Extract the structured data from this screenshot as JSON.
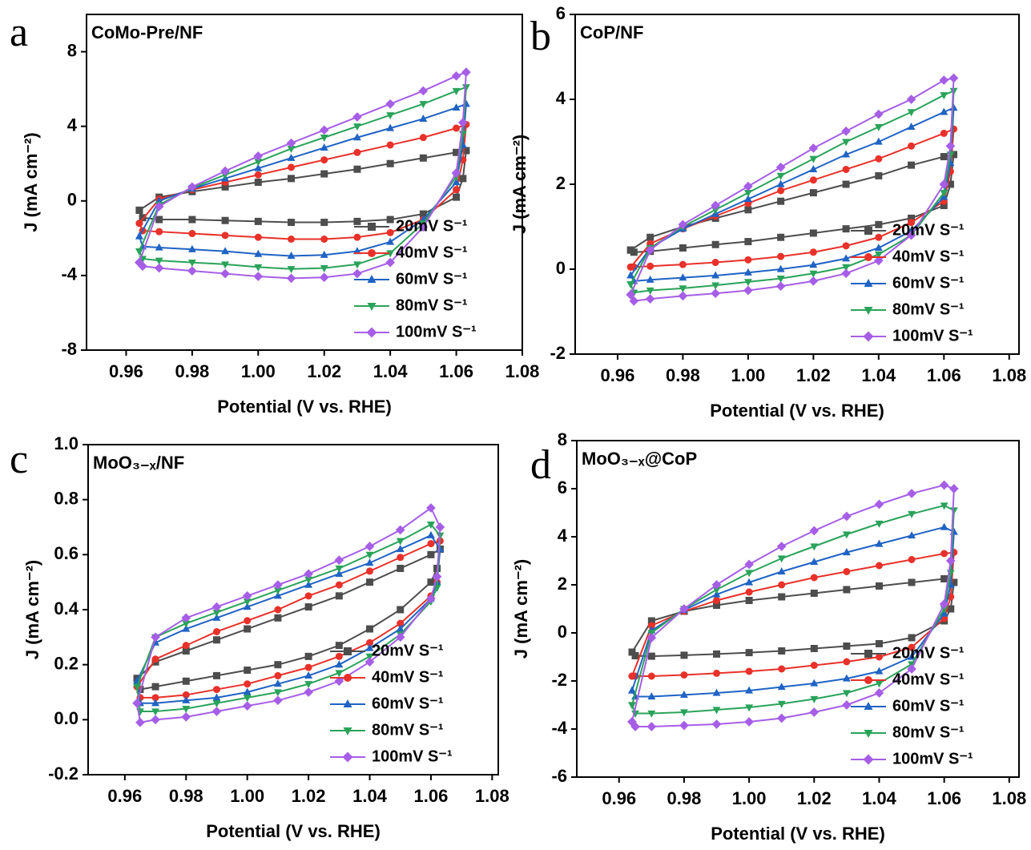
{
  "chart_data": [
    {
      "type": "line",
      "panel_label": "a",
      "title": "CoMo-Pre/NF",
      "xlabel": "Potential (V vs. RHE)",
      "ylabel": "J (mA cm⁻²)",
      "xlim": [
        0.948,
        1.08
      ],
      "ylim": [
        -8,
        10
      ],
      "xticks": [
        0.96,
        0.98,
        {
          "value": 1,
          "label": "1.00"
        },
        1.02,
        1.04,
        1.06,
        1.08
      ],
      "yticks": [
        -8,
        -4,
        0,
        4,
        8
      ],
      "legend": "lower right",
      "x": [
        0.964,
        0.97,
        0.98,
        0.99,
        1.0,
        1.01,
        1.02,
        1.03,
        1.04,
        1.05,
        1.06,
        1.063,
        1.062,
        1.06,
        1.05,
        1.04,
        1.03,
        1.02,
        1.01,
        1.0,
        0.99,
        0.98,
        0.97,
        0.965,
        0.964
      ],
      "series": [
        {
          "name": "20mV S⁻¹",
          "color": "#4d4d4d",
          "marker": "square",
          "values": [
            -0.5,
            0.2,
            0.5,
            0.75,
            1.0,
            1.2,
            1.45,
            1.7,
            2.0,
            2.3,
            2.6,
            2.7,
            1.2,
            0.2,
            -0.7,
            -1.0,
            -1.1,
            -1.15,
            -1.15,
            -1.1,
            -1.05,
            -1.0,
            -1.0,
            -0.9,
            -0.5
          ]
        },
        {
          "name": "40mV S⁻¹",
          "color": "#e8312a",
          "marker": "circle",
          "values": [
            -1.2,
            0.1,
            0.6,
            1.0,
            1.4,
            1.8,
            2.2,
            2.6,
            3.0,
            3.4,
            3.9,
            4.1,
            2.2,
            0.6,
            -1.0,
            -1.7,
            -1.95,
            -2.05,
            -2.05,
            -1.95,
            -1.85,
            -1.75,
            -1.65,
            -1.6,
            -1.2
          ]
        },
        {
          "name": "60mV S⁻¹",
          "color": "#1f63c4",
          "marker": "triangle-up",
          "values": [
            -1.9,
            0.0,
            0.65,
            1.2,
            1.75,
            2.3,
            2.85,
            3.4,
            3.9,
            4.4,
            5.0,
            5.2,
            3.0,
            1.0,
            -1.0,
            -2.2,
            -2.7,
            -2.9,
            -2.95,
            -2.85,
            -2.7,
            -2.6,
            -2.5,
            -2.45,
            -1.9
          ]
        },
        {
          "name": "80mV S⁻¹",
          "color": "#2aa35a",
          "marker": "triangle-down",
          "values": [
            -2.7,
            -0.2,
            0.7,
            1.4,
            2.1,
            2.8,
            3.4,
            4.0,
            4.6,
            5.2,
            5.9,
            6.1,
            3.6,
            1.3,
            -1.2,
            -2.8,
            -3.4,
            -3.6,
            -3.65,
            -3.55,
            -3.4,
            -3.3,
            -3.2,
            -3.1,
            -2.7
          ]
        },
        {
          "name": "100mV S⁻¹",
          "color": "#a65ee6",
          "marker": "diamond",
          "values": [
            -3.3,
            -0.3,
            0.75,
            1.6,
            2.4,
            3.1,
            3.8,
            4.5,
            5.2,
            5.9,
            6.7,
            6.9,
            4.2,
            1.5,
            -1.4,
            -3.3,
            -3.9,
            -4.1,
            -4.15,
            -4.05,
            -3.9,
            -3.75,
            -3.6,
            -3.5,
            -3.3
          ]
        }
      ]
    },
    {
      "type": "line",
      "panel_label": "b",
      "title": "CoP/NF",
      "xlabel": "Potential (V vs. RHE)",
      "ylabel": "J (mA cm⁻²)",
      "xlim": [
        0.947,
        1.083
      ],
      "ylim": [
        -2,
        6
      ],
      "xticks": [
        0.96,
        0.98,
        {
          "value": 1,
          "label": "1.00"
        },
        1.02,
        1.04,
        1.06,
        1.08
      ],
      "yticks": [
        -2,
        0,
        2,
        4,
        6
      ],
      "legend": "lower right",
      "x": [
        0.964,
        0.97,
        0.98,
        0.99,
        1.0,
        1.01,
        1.02,
        1.03,
        1.04,
        1.05,
        1.06,
        1.063,
        1.062,
        1.06,
        1.05,
        1.04,
        1.03,
        1.02,
        1.01,
        1.0,
        0.99,
        0.98,
        0.97,
        0.965,
        0.964
      ],
      "series": [
        {
          "name": "20mV S⁻¹",
          "color": "#4d4d4d",
          "marker": "square",
          "values": [
            0.45,
            0.75,
            1.0,
            1.2,
            1.4,
            1.6,
            1.8,
            2.0,
            2.2,
            2.45,
            2.65,
            2.7,
            2.0,
            1.5,
            1.2,
            1.05,
            0.95,
            0.85,
            0.75,
            0.65,
            0.58,
            0.5,
            0.42,
            0.4,
            0.45
          ]
        },
        {
          "name": "40mV S⁻¹",
          "color": "#e8312a",
          "marker": "circle",
          "values": [
            0.05,
            0.6,
            0.95,
            1.25,
            1.55,
            1.85,
            2.1,
            2.35,
            2.6,
            2.9,
            3.2,
            3.3,
            2.3,
            1.6,
            1.1,
            0.75,
            0.55,
            0.4,
            0.3,
            0.22,
            0.16,
            0.11,
            0.07,
            0.05,
            0.05
          ]
        },
        {
          "name": "60mV S⁻¹",
          "color": "#1f63c4",
          "marker": "triangle-up",
          "values": [
            -0.15,
            0.5,
            0.95,
            1.3,
            1.65,
            2.0,
            2.35,
            2.7,
            3.0,
            3.35,
            3.7,
            3.8,
            2.5,
            1.7,
            0.9,
            0.5,
            0.25,
            0.1,
            0.0,
            -0.08,
            -0.15,
            -0.2,
            -0.25,
            -0.28,
            -0.15
          ]
        },
        {
          "name": "80mV S⁻¹",
          "color": "#2aa35a",
          "marker": "triangle-down",
          "values": [
            -0.35,
            0.5,
            1.0,
            1.4,
            1.8,
            2.2,
            2.6,
            3.0,
            3.35,
            3.7,
            4.1,
            4.2,
            2.7,
            1.8,
            0.8,
            0.35,
            0.05,
            -0.1,
            -0.22,
            -0.3,
            -0.38,
            -0.45,
            -0.5,
            -0.55,
            -0.35
          ]
        },
        {
          "name": "100mV S⁻¹",
          "color": "#a65ee6",
          "marker": "diamond",
          "values": [
            -0.6,
            0.45,
            1.05,
            1.5,
            1.95,
            2.4,
            2.85,
            3.25,
            3.65,
            4.0,
            4.45,
            4.5,
            2.9,
            2.0,
            0.8,
            0.2,
            -0.1,
            -0.28,
            -0.4,
            -0.5,
            -0.57,
            -0.63,
            -0.7,
            -0.75,
            -0.6
          ]
        }
      ]
    },
    {
      "type": "line",
      "panel_label": "c",
      "title": "MoO₃₋ₓ/NF",
      "xlabel": "Potential (V vs. RHE)",
      "ylabel": "J (mA cm⁻²)",
      "xlim": [
        0.948,
        1.082
      ],
      "ylim": [
        -0.2,
        1.0
      ],
      "xticks": [
        0.96,
        0.98,
        {
          "value": 1,
          "label": "1.00"
        },
        1.02,
        1.04,
        1.06,
        1.08
      ],
      "yticks": [
        -0.2,
        {
          "value": 0,
          "label": "0.0"
        },
        0.2,
        0.4,
        0.6,
        0.8,
        {
          "value": 1,
          "label": "1.0"
        }
      ],
      "legend": "lower right",
      "x": [
        0.964,
        0.97,
        0.98,
        0.99,
        1.0,
        1.01,
        1.02,
        1.03,
        1.04,
        1.05,
        1.06,
        1.063,
        1.062,
        1.06,
        1.05,
        1.04,
        1.03,
        1.02,
        1.01,
        1.0,
        0.99,
        0.98,
        0.97,
        0.965,
        0.964
      ],
      "series": [
        {
          "name": "20mV S⁻¹",
          "color": "#4d4d4d",
          "marker": "square",
          "values": [
            0.15,
            0.21,
            0.25,
            0.29,
            0.33,
            0.37,
            0.41,
            0.45,
            0.5,
            0.55,
            0.6,
            0.62,
            0.55,
            0.5,
            0.4,
            0.33,
            0.27,
            0.23,
            0.2,
            0.18,
            0.16,
            0.14,
            0.12,
            0.11,
            0.15
          ]
        },
        {
          "name": "40mV S⁻¹",
          "color": "#e8312a",
          "marker": "circle",
          "values": [
            0.12,
            0.22,
            0.27,
            0.32,
            0.36,
            0.4,
            0.45,
            0.49,
            0.54,
            0.59,
            0.64,
            0.65,
            0.5,
            0.45,
            0.35,
            0.28,
            0.23,
            0.19,
            0.16,
            0.13,
            0.11,
            0.09,
            0.08,
            0.08,
            0.12
          ]
        },
        {
          "name": "60mV S⁻¹",
          "color": "#1f63c4",
          "marker": "triangle-up",
          "values": [
            0.14,
            0.28,
            0.33,
            0.37,
            0.41,
            0.45,
            0.49,
            0.53,
            0.57,
            0.62,
            0.67,
            0.62,
            0.5,
            0.44,
            0.33,
            0.26,
            0.2,
            0.16,
            0.13,
            0.1,
            0.08,
            0.07,
            0.06,
            0.06,
            0.14
          ]
        },
        {
          "name": "80mV S⁻¹",
          "color": "#2aa35a",
          "marker": "triangle-down",
          "values": [
            0.12,
            0.3,
            0.35,
            0.39,
            0.43,
            0.47,
            0.51,
            0.55,
            0.6,
            0.65,
            0.71,
            0.67,
            0.48,
            0.43,
            0.31,
            0.23,
            0.17,
            0.13,
            0.1,
            0.08,
            0.06,
            0.04,
            0.03,
            0.03,
            0.12
          ]
        },
        {
          "name": "100mV S⁻¹",
          "color": "#a65ee6",
          "marker": "diamond",
          "values": [
            0.06,
            0.3,
            0.37,
            0.41,
            0.45,
            0.49,
            0.53,
            0.58,
            0.63,
            0.69,
            0.77,
            0.7,
            0.52,
            0.44,
            0.3,
            0.21,
            0.14,
            0.1,
            0.07,
            0.05,
            0.03,
            0.01,
            0.0,
            -0.01,
            0.06
          ]
        }
      ]
    },
    {
      "type": "line",
      "panel_label": "d",
      "title": "MoO₃₋ₓ@CoP",
      "xlabel": "Potential (V vs. RHE)",
      "ylabel": "J (mA cm⁻²)",
      "xlim": [
        0.947,
        1.083
      ],
      "ylim": [
        -6,
        8
      ],
      "xticks": [
        0.96,
        0.98,
        {
          "value": 1,
          "label": "1.00"
        },
        1.02,
        1.04,
        1.06,
        1.08
      ],
      "yticks": [
        -6,
        -4,
        -2,
        0,
        2,
        4,
        6,
        8
      ],
      "legend": "lower right",
      "x": [
        0.964,
        0.97,
        0.98,
        0.99,
        1.0,
        1.01,
        1.02,
        1.03,
        1.04,
        1.05,
        1.06,
        1.063,
        1.062,
        1.06,
        1.05,
        1.04,
        1.03,
        1.02,
        1.01,
        1.0,
        0.99,
        0.98,
        0.97,
        0.965,
        0.964
      ],
      "series": [
        {
          "name": "20mV S⁻¹",
          "color": "#4d4d4d",
          "marker": "square",
          "values": [
            -0.8,
            0.5,
            0.9,
            1.15,
            1.35,
            1.5,
            1.65,
            1.8,
            1.95,
            2.1,
            2.25,
            2.1,
            1.0,
            0.5,
            -0.2,
            -0.45,
            -0.55,
            -0.65,
            -0.75,
            -0.82,
            -0.88,
            -0.93,
            -0.97,
            -0.95,
            -0.8
          ]
        },
        {
          "name": "40mV S⁻¹",
          "color": "#e8312a",
          "marker": "circle",
          "values": [
            -1.8,
            0.3,
            0.9,
            1.35,
            1.7,
            2.0,
            2.3,
            2.55,
            2.8,
            3.05,
            3.3,
            3.35,
            1.5,
            0.6,
            -0.6,
            -1.0,
            -1.2,
            -1.35,
            -1.5,
            -1.6,
            -1.68,
            -1.75,
            -1.8,
            -1.8,
            -1.8
          ]
        },
        {
          "name": "60mV S⁻¹",
          "color": "#1f63c4",
          "marker": "triangle-up",
          "values": [
            -2.4,
            0.1,
            0.95,
            1.6,
            2.1,
            2.55,
            2.95,
            3.35,
            3.7,
            4.05,
            4.4,
            4.2,
            2.0,
            0.8,
            -1.0,
            -1.6,
            -1.9,
            -2.1,
            -2.25,
            -2.4,
            -2.5,
            -2.58,
            -2.65,
            -2.65,
            -2.4
          ]
        },
        {
          "name": "80mV S⁻¹",
          "color": "#2aa35a",
          "marker": "triangle-down",
          "values": [
            -3.0,
            0.0,
            1.0,
            1.8,
            2.5,
            3.1,
            3.6,
            4.1,
            4.55,
            4.95,
            5.3,
            5.1,
            2.5,
            1.0,
            -1.3,
            -2.1,
            -2.5,
            -2.75,
            -2.95,
            -3.1,
            -3.2,
            -3.3,
            -3.35,
            -3.35,
            -3.0
          ]
        },
        {
          "name": "100mV S⁻¹",
          "color": "#a65ee6",
          "marker": "diamond",
          "values": [
            -3.7,
            -0.2,
            1.0,
            2.0,
            2.85,
            3.6,
            4.25,
            4.85,
            5.35,
            5.8,
            6.15,
            6.0,
            3.0,
            1.2,
            -1.5,
            -2.5,
            -3.0,
            -3.3,
            -3.55,
            -3.7,
            -3.8,
            -3.85,
            -3.9,
            -3.9,
            -3.7
          ]
        }
      ]
    }
  ]
}
